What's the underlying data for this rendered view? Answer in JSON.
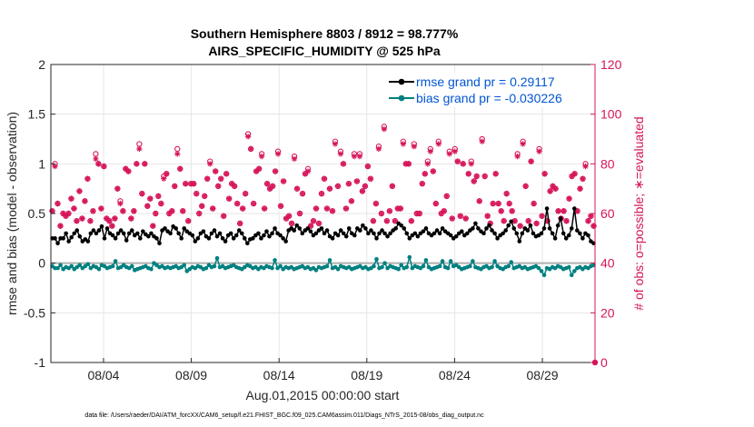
{
  "chart_data": {
    "type": "line",
    "title": "Southern Hemisphere 8803 / 8912 = 98.777%",
    "subtitle": "AIRS_SPECIFIC_HUMIDITY @ 525 hPa",
    "xlabel": "Aug.01,2015 00:00:00 start",
    "ylabel": "rmse and bias (model - observation)",
    "y2label": "# of obs: o=possible; ∗=evaluated",
    "footnote": "data file: /Users/raeder/DAI/ATM_forcXX/CAM6_setup/f.e21.FHIST_BGC.f09_025.CAM6assim.011/Diags_NTrS_2015-08/obs_diag_output.nc",
    "xlim": [
      0,
      31
    ],
    "ylim": [
      -1,
      2
    ],
    "y2lim": [
      0,
      120
    ],
    "x_ticks": [
      {
        "x": 3,
        "label": "08/04"
      },
      {
        "x": 8,
        "label": "08/09"
      },
      {
        "x": 13,
        "label": "08/14"
      },
      {
        "x": 18,
        "label": "08/19"
      },
      {
        "x": 23,
        "label": "08/24"
      },
      {
        "x": 28,
        "label": "08/29"
      }
    ],
    "y_ticks": [
      -1,
      -0.5,
      0,
      0.5,
      1,
      1.5,
      2
    ],
    "y_tick_labels": [
      "-1",
      "-0.5",
      "0",
      "0.5",
      "1",
      "1.5",
      "2"
    ],
    "y2_ticks": [
      0,
      20,
      40,
      60,
      80,
      100,
      120
    ],
    "grid": true,
    "legend_position": "top-right",
    "colors": {
      "rmse": "#000000",
      "bias": "#008080",
      "counts": "#d6145a",
      "zero_line": "#b0b0b0"
    },
    "series": [
      {
        "name": "rmse grand pr = 0.29117",
        "values": [
          0.25,
          0.25,
          0.2,
          0.25,
          0.25,
          0.3,
          0.22,
          0.26,
          0.3,
          0.33,
          0.27,
          0.22,
          0.24,
          0.22,
          0.3,
          0.33,
          0.3,
          0.33,
          0.37,
          0.25,
          0.35,
          0.3,
          0.28,
          0.25,
          0.3,
          0.33,
          0.3,
          0.23,
          0.3,
          0.33,
          0.28,
          0.3,
          0.25,
          0.32,
          0.29,
          0.27,
          0.3,
          0.27,
          0.25,
          0.2,
          0.33,
          0.35,
          0.32,
          0.3,
          0.37,
          0.35,
          0.3,
          0.25,
          0.35,
          0.32,
          0.3,
          0.28,
          0.22,
          0.25,
          0.3,
          0.32,
          0.27,
          0.25,
          0.3,
          0.33,
          0.27,
          0.3,
          0.25,
          0.22,
          0.28,
          0.3,
          0.25,
          0.28,
          0.33,
          0.3,
          0.25,
          0.2,
          0.24,
          0.25,
          0.28,
          0.3,
          0.25,
          0.28,
          0.32,
          0.27,
          0.3,
          0.35,
          0.3,
          0.28,
          0.25,
          0.22,
          0.33,
          0.35,
          0.33,
          0.38,
          0.35,
          0.3,
          0.33,
          0.35,
          0.32,
          0.28,
          0.3,
          0.33,
          0.35,
          0.3,
          0.33,
          0.27,
          0.25,
          0.3,
          0.28,
          0.33,
          0.3,
          0.27,
          0.35,
          0.3,
          0.28,
          0.35,
          0.33,
          0.38,
          0.35,
          0.3,
          0.33,
          0.3,
          0.25,
          0.3,
          0.33,
          0.3,
          0.27,
          0.3,
          0.33,
          0.35,
          0.4,
          0.38,
          0.35,
          0.3,
          0.25,
          0.28,
          0.3,
          0.27,
          0.3,
          0.32,
          0.35,
          0.3,
          0.28,
          0.3,
          0.33,
          0.3,
          0.35,
          0.32,
          0.3,
          0.28,
          0.25,
          0.27,
          0.3,
          0.32,
          0.28,
          0.3,
          0.33,
          0.35,
          0.4,
          0.35,
          0.32,
          0.3,
          0.35,
          0.38,
          0.33,
          0.3,
          0.25,
          0.28,
          0.3,
          0.33,
          0.38,
          0.42,
          0.35,
          0.3,
          0.22,
          0.3,
          0.35,
          0.33,
          0.38,
          0.3,
          0.27,
          0.28,
          0.3,
          0.35,
          0.55,
          0.35,
          0.3,
          0.25,
          0.38,
          0.45,
          0.3,
          0.25,
          0.28,
          0.35,
          0.55,
          0.33,
          0.3,
          0.25,
          0.3,
          0.28,
          0.22,
          0.2
        ]
      },
      {
        "name": "bias grand pr = -0.030226",
        "values": [
          -0.03,
          -0.05,
          -0.05,
          -0.02,
          -0.06,
          -0.04,
          -0.05,
          -0.03,
          -0.06,
          -0.04,
          -0.02,
          -0.05,
          -0.03,
          -0.01,
          -0.05,
          -0.03,
          -0.04,
          -0.06,
          -0.02,
          -0.03,
          -0.05,
          -0.04,
          -0.03,
          0.02,
          -0.05,
          -0.04,
          -0.02,
          -0.04,
          -0.05,
          -0.03,
          -0.07,
          -0.06,
          -0.05,
          -0.04,
          -0.03,
          -0.05,
          -0.06,
          0,
          -0.02,
          -0.04,
          -0.03,
          -0.05,
          -0.04,
          -0.05,
          -0.04,
          -0.03,
          -0.05,
          -0.04,
          -0.02,
          -0.08,
          -0.06,
          -0.04,
          -0.05,
          -0.03,
          -0.04,
          -0.06,
          -0.05,
          -0.02,
          -0.04,
          -0.03,
          0.05,
          -0.04,
          -0.03,
          -0.05,
          -0.04,
          -0.03,
          -0.02,
          -0.04,
          -0.05,
          -0.06,
          -0.04,
          -0.02,
          -0.03,
          -0.05,
          -0.04,
          -0.06,
          -0.04,
          -0.05,
          -0.03,
          -0.04,
          -0.05,
          0.03,
          -0.05,
          -0.03,
          -0.06,
          -0.04,
          -0.05,
          -0.04,
          -0.06,
          -0.05,
          -0.04,
          -0.03,
          -0.05,
          -0.04,
          -0.06,
          -0.05,
          -0.07,
          -0.04,
          -0.05,
          -0.04,
          -0.03,
          0.03,
          -0.05,
          -0.04,
          -0.06,
          -0.03,
          -0.04,
          -0.05,
          -0.04,
          -0.06,
          -0.05,
          -0.04,
          -0.03,
          -0.05,
          -0.04,
          -0.06,
          -0.05,
          -0.03,
          0.04,
          -0.05,
          -0.04,
          0,
          -0.05,
          -0.03,
          -0.04,
          -0.05,
          -0.06,
          -0.02,
          -0.05,
          -0.04,
          0.06,
          -0.05,
          -0.03,
          -0.04,
          -0.05,
          -0.03,
          0.03,
          -0.04,
          -0.06,
          -0.05,
          -0.04,
          -0.03,
          0.02,
          -0.04,
          -0.05,
          0.02,
          -0.03,
          -0.02,
          -0.04,
          -0.06,
          -0.05,
          -0.04,
          -0.03,
          0.02,
          -0.04,
          -0.05,
          -0.06,
          -0.04,
          -0.03,
          -0.05,
          -0.04,
          0.02,
          -0.03,
          -0.05,
          -0.06,
          -0.04,
          -0.03,
          0.01,
          -0.05,
          -0.04,
          -0.03,
          -0.05,
          -0.04,
          -0.06,
          -0.05,
          -0.04,
          -0.03,
          -0.05,
          -0.08,
          -0.12,
          -0.05,
          -0.06,
          -0.04,
          -0.05,
          -0.03,
          -0.04,
          -0.06,
          -0.05,
          -0.04,
          -0.12,
          -0.08,
          -0.05,
          -0.04,
          -0.06,
          -0.04,
          -0.05,
          -0.03,
          -0.02
        ]
      }
    ],
    "counts_possible": [
      61,
      80,
      64,
      55,
      60,
      59,
      60,
      66,
      62,
      57,
      69,
      58,
      65,
      74,
      57,
      61,
      84,
      80,
      62,
      79,
      58,
      57,
      55,
      58,
      70,
      65,
      61,
      78,
      77,
      58,
      61,
      80,
      88,
      68,
      80,
      63,
      66,
      55,
      60,
      67,
      64,
      75,
      76,
      60,
      61,
      71,
      86,
      78,
      61,
      72,
      57,
      72,
      72,
      68,
      60,
      63,
      67,
      74,
      81,
      62,
      77,
      71,
      74,
      59,
      76,
      66,
      72,
      71,
      64,
      56,
      62,
      68,
      92,
      86,
      64,
      77,
      78,
      84,
      62,
      72,
      70,
      71,
      77,
      85,
      63,
      73,
      58,
      59,
      56,
      83,
      70,
      60,
      68,
      76,
      78,
      55,
      57,
      62,
      56,
      68,
      74,
      62,
      70,
      61,
      89,
      71,
      85,
      80,
      62,
      72,
      65,
      84,
      73,
      84,
      69,
      71,
      79,
      74,
      57,
      64,
      87,
      60,
      95,
      57,
      61,
      71,
      57,
      62,
      62,
      89,
      80,
      80,
      57,
      88,
      60,
      60,
      72,
      76,
      81,
      86,
      77,
      64,
      89,
      60,
      61,
      67,
      85,
      58,
      86,
      81,
      59,
      80,
      58,
      76,
      81,
      73,
      75,
      65,
      90,
      75,
      59,
      56,
      64,
      76,
      64,
      61,
      57,
      68,
      64,
      61,
      57,
      84,
      55,
      89,
      71,
      57,
      81,
      64,
      56,
      86,
      59,
      76,
      57,
      69,
      71,
      70,
      61,
      58,
      61,
      57,
      66,
      75,
      76,
      61,
      70,
      74,
      80,
      57,
      59,
      55
    ],
    "counts_evaluated": [
      61,
      79,
      64,
      55,
      60,
      59,
      60,
      66,
      62,
      57,
      69,
      58,
      65,
      74,
      57,
      61,
      82,
      80,
      62,
      79,
      58,
      57,
      55,
      58,
      70,
      64,
      61,
      78,
      77,
      58,
      61,
      80,
      86,
      68,
      80,
      63,
      66,
      55,
      60,
      67,
      64,
      74,
      76,
      60,
      61,
      71,
      84,
      78,
      61,
      72,
      57,
      72,
      72,
      68,
      60,
      63,
      67,
      74,
      80,
      62,
      77,
      71,
      74,
      59,
      76,
      66,
      72,
      71,
      64,
      56,
      62,
      68,
      91,
      86,
      64,
      77,
      78,
      83,
      62,
      72,
      70,
      71,
      77,
      84,
      63,
      73,
      58,
      59,
      56,
      82,
      70,
      60,
      68,
      76,
      77,
      55,
      57,
      62,
      56,
      68,
      74,
      62,
      70,
      61,
      88,
      71,
      84,
      80,
      62,
      72,
      65,
      83,
      73,
      83,
      69,
      71,
      79,
      74,
      57,
      64,
      86,
      60,
      94,
      57,
      61,
      71,
      57,
      62,
      62,
      88,
      80,
      80,
      57,
      87,
      60,
      60,
      72,
      76,
      80,
      85,
      77,
      64,
      88,
      60,
      61,
      67,
      84,
      58,
      85,
      81,
      59,
      80,
      58,
      76,
      80,
      73,
      75,
      65,
      89,
      75,
      59,
      56,
      64,
      76,
      64,
      61,
      57,
      68,
      64,
      61,
      57,
      83,
      55,
      88,
      71,
      57,
      81,
      64,
      56,
      85,
      59,
      76,
      57,
      69,
      71,
      70,
      61,
      58,
      61,
      57,
      66,
      75,
      76,
      61,
      70,
      74,
      79,
      57,
      59,
      55
    ]
  }
}
